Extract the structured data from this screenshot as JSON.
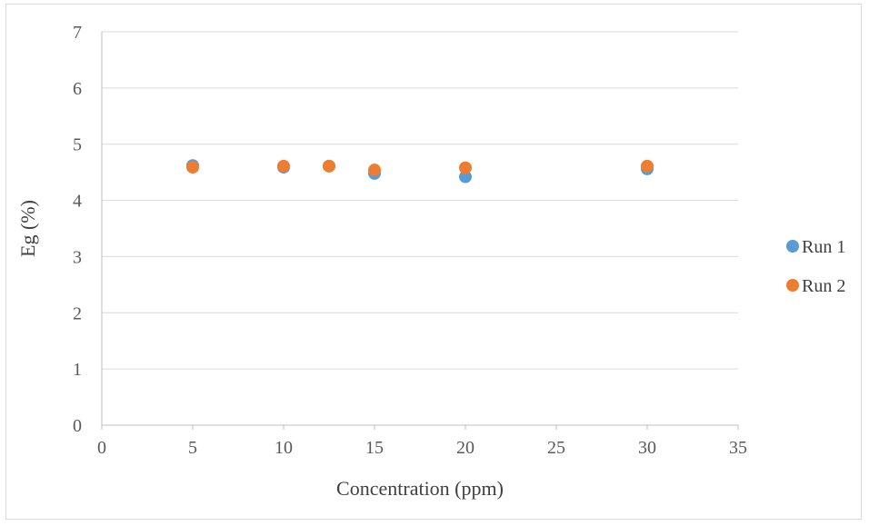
{
  "chart_data": {
    "type": "scatter",
    "title": "",
    "xlabel": "Concentration (ppm)",
    "ylabel": "Eg (%)",
    "xlim": [
      0,
      35
    ],
    "ylim": [
      0,
      7
    ],
    "xticks": [
      0,
      5,
      10,
      15,
      20,
      25,
      30,
      35
    ],
    "yticks": [
      0,
      1,
      2,
      3,
      4,
      5,
      6,
      7
    ],
    "grid": "horizontal",
    "legend_position": "right",
    "series": [
      {
        "name": "Run 1",
        "color": "#5b9bd5",
        "points": [
          {
            "x": 5,
            "y": 4.62
          },
          {
            "x": 10,
            "y": 4.59
          },
          {
            "x": 12.5,
            "y": 4.61
          },
          {
            "x": 15,
            "y": 4.48
          },
          {
            "x": 20,
            "y": 4.42
          },
          {
            "x": 30,
            "y": 4.56
          }
        ]
      },
      {
        "name": "Run 2",
        "color": "#ed7d31",
        "points": [
          {
            "x": 5,
            "y": 4.59
          },
          {
            "x": 10,
            "y": 4.61
          },
          {
            "x": 12.5,
            "y": 4.61
          },
          {
            "x": 15,
            "y": 4.54
          },
          {
            "x": 20,
            "y": 4.58
          },
          {
            "x": 30,
            "y": 4.61
          }
        ]
      }
    ]
  }
}
